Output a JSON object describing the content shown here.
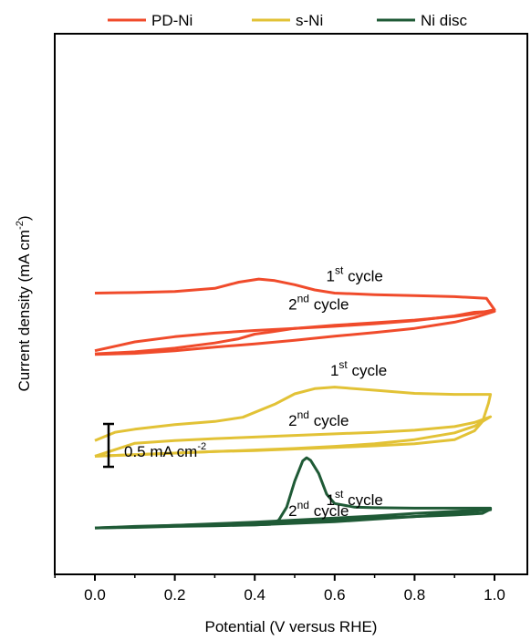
{
  "chart_data": {
    "type": "line",
    "xlabel": "Potential (V versus RHE)",
    "ylabel": "Current density (mA cm",
    "ylabel_sup": "-2",
    "ylabel_close": ")",
    "xlim": [
      -0.1,
      1.02
    ],
    "xticks": [
      0.0,
      0.2,
      0.4,
      0.6,
      0.8,
      1.0
    ],
    "xtick_labels": [
      "0.0",
      "0.2",
      "0.4",
      "0.6",
      "0.8",
      "1.0"
    ],
    "y_ticks_shown": false,
    "grid": false,
    "legend_position": "top",
    "scale_bar": {
      "value": 0.5,
      "label": "0.5 mA cm",
      "label_sup": "-2"
    },
    "series": [
      {
        "name": "PD-Ni",
        "color": "#f04b2b",
        "offset": 3.6,
        "loops": [
          {
            "cycle": "1st",
            "forward": [
              [
                0.0,
                -0.55
              ],
              [
                0.1,
                -0.51
              ],
              [
                0.2,
                -0.44
              ],
              [
                0.3,
                -0.34
              ],
              [
                0.36,
                -0.26
              ],
              [
                0.4,
                -0.17
              ],
              [
                0.44,
                -0.13
              ],
              [
                0.5,
                -0.06
              ],
              [
                0.6,
                0.0
              ],
              [
                0.7,
                0.05
              ],
              [
                0.8,
                0.1
              ],
              [
                0.9,
                0.17
              ],
              [
                0.95,
                0.22
              ],
              [
                1.0,
                0.3
              ]
            ],
            "reverse": [
              [
                1.0,
                0.3
              ],
              [
                0.98,
                0.52
              ],
              [
                0.9,
                0.55
              ],
              [
                0.8,
                0.57
              ],
              [
                0.7,
                0.59
              ],
              [
                0.6,
                0.62
              ],
              [
                0.55,
                0.68
              ],
              [
                0.5,
                0.78
              ],
              [
                0.45,
                0.86
              ],
              [
                0.41,
                0.89
              ],
              [
                0.36,
                0.83
              ],
              [
                0.3,
                0.71
              ],
              [
                0.2,
                0.65
              ],
              [
                0.1,
                0.63
              ],
              [
                0.0,
                0.62
              ]
            ]
          },
          {
            "cycle": "2nd",
            "forward": [
              [
                0.0,
                -0.56
              ],
              [
                0.1,
                -0.54
              ],
              [
                0.2,
                -0.49
              ],
              [
                0.3,
                -0.42
              ],
              [
                0.4,
                -0.36
              ],
              [
                0.5,
                -0.29
              ],
              [
                0.6,
                -0.21
              ],
              [
                0.7,
                -0.14
              ],
              [
                0.8,
                -0.06
              ],
              [
                0.9,
                0.06
              ],
              [
                0.95,
                0.15
              ],
              [
                1.0,
                0.27
              ]
            ],
            "reverse": [
              [
                1.0,
                0.27
              ],
              [
                0.95,
                0.25
              ],
              [
                0.9,
                0.18
              ],
              [
                0.8,
                0.09
              ],
              [
                0.7,
                0.03
              ],
              [
                0.6,
                -0.02
              ],
              [
                0.5,
                -0.06
              ],
              [
                0.4,
                -0.1
              ],
              [
                0.3,
                -0.15
              ],
              [
                0.2,
                -0.22
              ],
              [
                0.1,
                -0.32
              ],
              [
                0.0,
                -0.49
              ]
            ]
          }
        ],
        "annotations": [
          {
            "text": "1",
            "sup": "st",
            "tail": " cycle",
            "x": 0.65,
            "y": 0.85
          },
          {
            "text": "2",
            "sup": "nd",
            "tail": " cycle",
            "x": 0.56,
            "y": 0.3
          }
        ]
      },
      {
        "name": "s-Ni",
        "color": "#e2c236",
        "offset": 1.9,
        "loops": [
          {
            "cycle": "1st",
            "forward": [
              [
                0.0,
                -0.52
              ],
              [
                0.05,
                -0.36
              ],
              [
                0.1,
                -0.3
              ],
              [
                0.2,
                -0.21
              ],
              [
                0.3,
                -0.15
              ],
              [
                0.37,
                -0.07
              ],
              [
                0.45,
                0.18
              ],
              [
                0.5,
                0.38
              ],
              [
                0.55,
                0.48
              ],
              [
                0.6,
                0.51
              ],
              [
                0.7,
                0.45
              ],
              [
                0.8,
                0.39
              ],
              [
                0.9,
                0.37
              ],
              [
                0.99,
                0.37
              ]
            ],
            "reverse": [
              [
                0.99,
                0.33
              ],
              [
                0.985,
                0.2
              ],
              [
                0.97,
                -0.15
              ],
              [
                0.95,
                -0.33
              ],
              [
                0.9,
                -0.5
              ],
              [
                0.8,
                -0.58
              ],
              [
                0.7,
                -0.62
              ],
              [
                0.6,
                -0.65
              ],
              [
                0.5,
                -0.68
              ],
              [
                0.4,
                -0.71
              ],
              [
                0.3,
                -0.73
              ],
              [
                0.2,
                -0.76
              ],
              [
                0.1,
                -0.79
              ],
              [
                0.0,
                -0.82
              ]
            ]
          },
          {
            "cycle": "2nd",
            "forward": [
              [
                0.0,
                -0.82
              ],
              [
                0.1,
                -0.79
              ],
              [
                0.2,
                -0.76
              ],
              [
                0.3,
                -0.73
              ],
              [
                0.4,
                -0.7
              ],
              [
                0.5,
                -0.67
              ],
              [
                0.6,
                -0.63
              ],
              [
                0.7,
                -0.58
              ],
              [
                0.8,
                -0.5
              ],
              [
                0.9,
                -0.37
              ],
              [
                0.95,
                -0.24
              ],
              [
                0.99,
                -0.06
              ]
            ],
            "reverse": [
              [
                0.99,
                -0.06
              ],
              [
                0.95,
                -0.17
              ],
              [
                0.9,
                -0.25
              ],
              [
                0.8,
                -0.32
              ],
              [
                0.7,
                -0.36
              ],
              [
                0.6,
                -0.39
              ],
              [
                0.5,
                -0.42
              ],
              [
                0.4,
                -0.45
              ],
              [
                0.3,
                -0.48
              ],
              [
                0.2,
                -0.52
              ],
              [
                0.1,
                -0.57
              ],
              [
                0.0,
                -0.82
              ]
            ]
          }
        ],
        "annotations": [
          {
            "text": "1",
            "sup": "st",
            "tail": " cycle",
            "x": 0.66,
            "y": 0.73
          },
          {
            "text": "2",
            "sup": "nd",
            "tail": " cycle",
            "x": 0.56,
            "y": -0.23
          }
        ]
      },
      {
        "name": "Ni disc",
        "color": "#1f5a36",
        "offset": 0.0,
        "loops": [
          {
            "cycle": "1st",
            "forward": [
              [
                0.0,
                -0.3
              ],
              [
                0.1,
                -0.28
              ],
              [
                0.2,
                -0.26
              ],
              [
                0.3,
                -0.25
              ],
              [
                0.4,
                -0.24
              ],
              [
                0.44,
                -0.23
              ],
              [
                0.46,
                -0.15
              ],
              [
                0.48,
                0.1
              ],
              [
                0.5,
                0.6
              ],
              [
                0.52,
                0.99
              ],
              [
                0.53,
                1.05
              ],
              [
                0.54,
                1.0
              ],
              [
                0.56,
                0.75
              ],
              [
                0.58,
                0.35
              ],
              [
                0.6,
                0.17
              ],
              [
                0.65,
                0.1
              ],
              [
                0.7,
                0.09
              ],
              [
                0.8,
                0.08
              ],
              [
                0.9,
                0.08
              ],
              [
                0.99,
                0.08
              ]
            ],
            "reverse": [
              [
                0.99,
                0.08
              ],
              [
                0.99,
                0.06
              ],
              [
                0.97,
                -0.02
              ],
              [
                0.9,
                -0.05
              ],
              [
                0.8,
                -0.08
              ],
              [
                0.7,
                -0.11
              ],
              [
                0.6,
                -0.14
              ],
              [
                0.5,
                -0.17
              ],
              [
                0.4,
                -0.2
              ],
              [
                0.3,
                -0.23
              ],
              [
                0.2,
                -0.25
              ],
              [
                0.1,
                -0.27
              ],
              [
                0.0,
                -0.3
              ]
            ]
          },
          {
            "cycle": "2nd",
            "forward": [
              [
                0.0,
                -0.3
              ],
              [
                0.1,
                -0.29
              ],
              [
                0.2,
                -0.27
              ],
              [
                0.3,
                -0.26
              ],
              [
                0.4,
                -0.24
              ],
              [
                0.5,
                -0.21
              ],
              [
                0.6,
                -0.18
              ],
              [
                0.7,
                -0.13
              ],
              [
                0.8,
                -0.08
              ],
              [
                0.9,
                -0.02
              ],
              [
                0.95,
                0.02
              ],
              [
                0.99,
                0.05
              ]
            ],
            "reverse": [
              [
                0.99,
                0.05
              ],
              [
                0.9,
                0.02
              ],
              [
                0.8,
                -0.02
              ],
              [
                0.7,
                -0.07
              ],
              [
                0.6,
                -0.11
              ],
              [
                0.5,
                -0.15
              ],
              [
                0.4,
                -0.19
              ],
              [
                0.3,
                -0.22
              ],
              [
                0.2,
                -0.25
              ],
              [
                0.1,
                -0.28
              ],
              [
                0.0,
                -0.3
              ]
            ]
          }
        ],
        "annotations": [
          {
            "text": "1",
            "sup": "st",
            "tail": " cycle",
            "x": 0.65,
            "y": 0.14
          },
          {
            "text": "2",
            "sup": "nd",
            "tail": " cycle",
            "x": 0.56,
            "y": -0.07
          }
        ]
      }
    ]
  }
}
